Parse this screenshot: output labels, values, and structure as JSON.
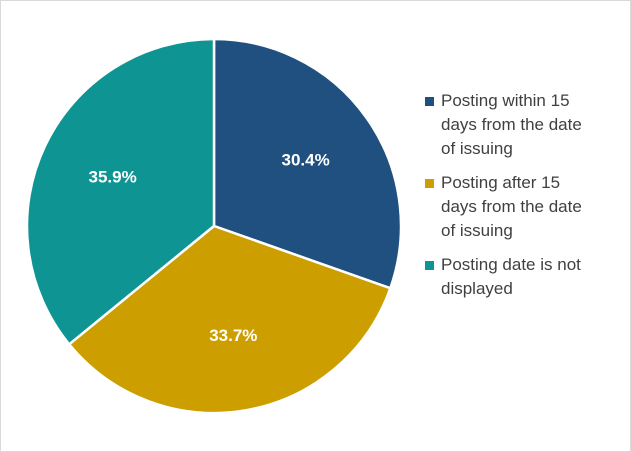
{
  "chart_data": {
    "type": "pie",
    "categories": [
      "Posting within 15 days from the date of issuing",
      "Posting after 15 days from the date of issuing",
      "Posting date is not displayed"
    ],
    "values": [
      30.4,
      33.7,
      35.9
    ],
    "value_labels": [
      "30.4%",
      "33.7%",
      "35.9%"
    ],
    "colors": [
      "#20507f",
      "#cc9e00",
      "#0f9494"
    ],
    "legend": "right"
  }
}
